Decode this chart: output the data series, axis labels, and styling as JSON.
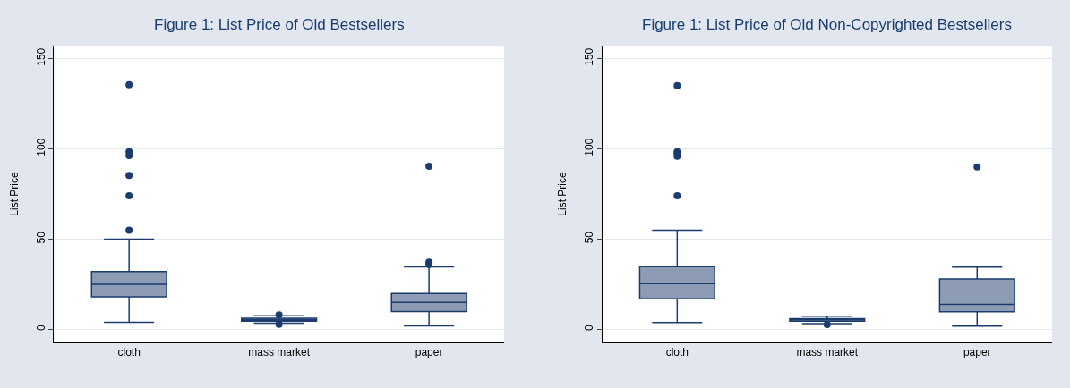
{
  "chart_data": [
    {
      "type": "box",
      "title": "Figure 1: List Price of Old Bestsellers",
      "ylabel": "List Price",
      "categories": [
        "cloth",
        "mass market",
        "paper"
      ],
      "color": "#8e9bb5",
      "ylim": [
        -7,
        157
      ],
      "yticks": [
        0,
        50,
        100,
        150
      ],
      "grid": "y",
      "boxes": [
        {
          "low": 4,
          "q1": 18,
          "median": 25,
          "q3": 32,
          "high": 50,
          "outliers": [
            135.5,
            98.4,
            96.3,
            85.3,
            74,
            55
          ]
        },
        {
          "low": 3.4,
          "q1": 4.6,
          "median": 5.3,
          "q3": 6.2,
          "high": 7.5,
          "outliers": [
            8,
            2.8
          ]
        },
        {
          "low": 2,
          "q1": 9.9,
          "median": 14.9,
          "q3": 19.9,
          "high": 34.6,
          "outliers": [
            90.4,
            37.2,
            36
          ]
        }
      ]
    },
    {
      "type": "box",
      "title": "Figure 1: List Price of Old Non-Copyrighted Bestsellers",
      "ylabel": "List Price",
      "categories": [
        "cloth",
        "mass market",
        "paper"
      ],
      "color": "#8e9bb5",
      "ylim": [
        -7,
        157
      ],
      "yticks": [
        0,
        50,
        100,
        150
      ],
      "grid": "y",
      "boxes": [
        {
          "low": 3.8,
          "q1": 17,
          "median": 25.4,
          "q3": 34.8,
          "high": 55,
          "outliers": [
            135,
            98.4,
            97.5,
            95.9,
            74
          ]
        },
        {
          "low": 3.2,
          "q1": 4.6,
          "median": 5.4,
          "q3": 5.9,
          "high": 7.3,
          "outliers": [
            2.7
          ]
        },
        {
          "low": 1.8,
          "q1": 9.8,
          "median": 13.9,
          "q3": 27.9,
          "high": 34.5,
          "outliers": [
            90
          ]
        }
      ]
    }
  ]
}
